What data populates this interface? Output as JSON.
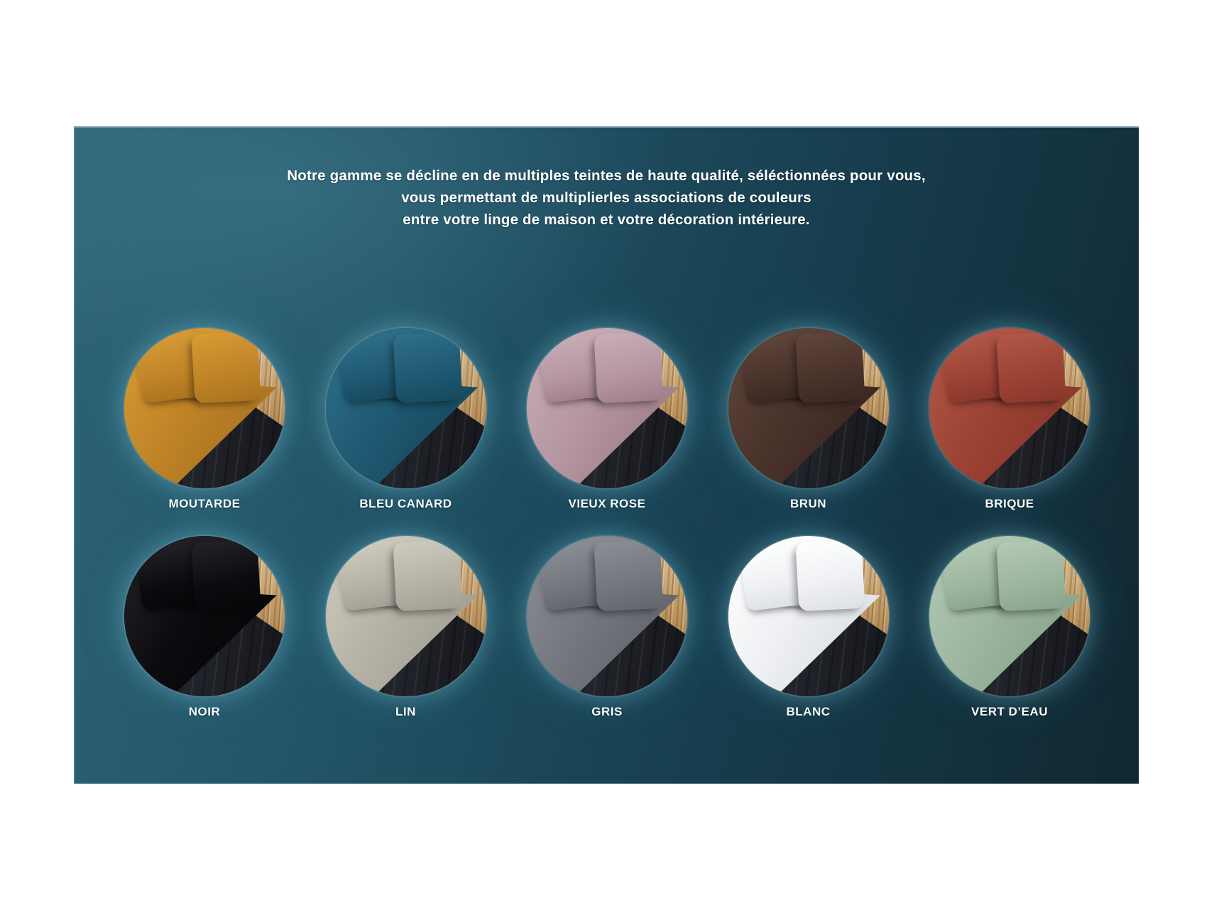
{
  "heading": {
    "lines": [
      "Notre gamme se décline en de multiples teintes de haute qualité, séléctionnées pour vous,",
      "vous permettant de multiplierles associations de couleurs",
      "entre votre linge de maison et votre décoration intérieure."
    ]
  },
  "swatches": [
    {
      "label": "MOUTARDE",
      "colors": {
        "light": "#d89b35",
        "base": "#c08327",
        "dark": "#9c6a1b"
      }
    },
    {
      "label": "BLEU CANARD",
      "colors": {
        "light": "#2f7089",
        "base": "#1f5972",
        "dark": "#123f52"
      }
    },
    {
      "label": "VIEUX ROSE",
      "colors": {
        "light": "#c9adb6",
        "base": "#b596a1",
        "dark": "#937079"
      }
    },
    {
      "label": "BRUN",
      "colors": {
        "light": "#5f463d",
        "base": "#4a332b",
        "dark": "#33201b"
      }
    },
    {
      "label": "BRIQUE",
      "colors": {
        "light": "#b25847",
        "base": "#9c4335",
        "dark": "#7e3024"
      }
    },
    {
      "label": "NOIR",
      "colors": {
        "light": "#222228",
        "base": "#0c0c10",
        "dark": "#030304"
      }
    },
    {
      "label": "LIN",
      "colors": {
        "light": "#cdcabf",
        "base": "#b6b2a6",
        "dark": "#97948a"
      }
    },
    {
      "label": "GRIS",
      "colors": {
        "light": "#8c8e95",
        "base": "#75777e",
        "dark": "#595b62"
      }
    },
    {
      "label": "BLANC",
      "colors": {
        "light": "#ffffff",
        "base": "#eef0f3",
        "dark": "#d3d6db"
      }
    },
    {
      "label": "VERT D’EAU",
      "colors": {
        "light": "#b3c9b4",
        "base": "#9db69f",
        "dark": "#7f9a82"
      }
    }
  ],
  "theme": {
    "page_bg": "#ffffff",
    "card_tl": "#2e6476",
    "card_m1": "#235568",
    "card_m2": "#173f50",
    "card_br": "#102731",
    "edge": "#6e95a2",
    "text": "#ffffff",
    "glow": "#7ac4d8",
    "wood_light": "#d8bc93",
    "wood_mid": "#c09a66",
    "wood_dark": "#a57f4c",
    "skirt_light": "#34363f",
    "skirt_mid": "#23252c",
    "skirt_dark": "#14161b"
  }
}
